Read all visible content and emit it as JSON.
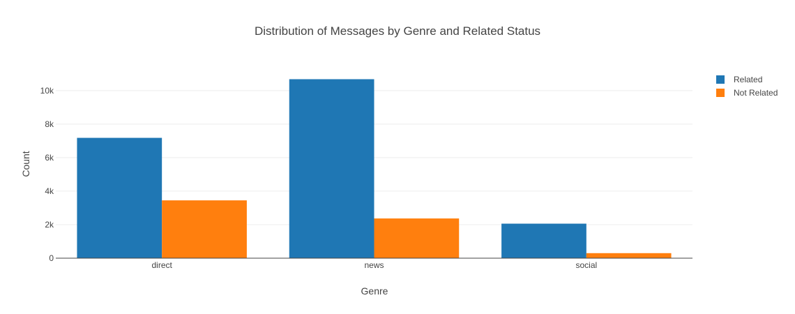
{
  "chart_data": {
    "type": "bar",
    "barmode": "group",
    "title": "Distribution of Messages by Genre and Related Status",
    "xlabel": "Genre",
    "ylabel": "Count",
    "categories": [
      "direct",
      "news",
      "social"
    ],
    "series": [
      {
        "name": "Related",
        "color": "#1f77b4",
        "values": [
          7180,
          10680,
          2060
        ]
      },
      {
        "name": "Not Related",
        "color": "#ff7f0e",
        "values": [
          3450,
          2370,
          300
        ]
      }
    ],
    "yticks": [
      0,
      2000,
      4000,
      6000,
      8000,
      10000
    ],
    "ytick_labels": [
      "0",
      "2k",
      "4k",
      "6k",
      "8k",
      "10k"
    ],
    "ylim": [
      0,
      11242
    ],
    "grid": true,
    "legend_position": "top-right"
  }
}
